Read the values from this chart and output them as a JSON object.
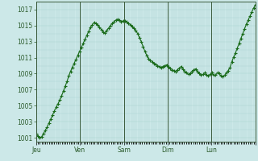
{
  "bg_color": "#cce8e8",
  "line_color": "#1a6b1a",
  "marker": "+",
  "marker_size": 2.5,
  "linewidth": 0.8,
  "ylim": [
    1000.5,
    1018.0
  ],
  "yticks": [
    1001,
    1003,
    1005,
    1007,
    1009,
    1011,
    1013,
    1015,
    1017
  ],
  "day_labels": [
    "Jeu",
    "Ven",
    "Sam",
    "Dim",
    "Lun",
    ""
  ],
  "day_positions_norm": [
    0.0,
    0.2,
    0.4,
    0.6,
    0.8,
    1.0
  ],
  "grid_color": "#a8d0cc",
  "major_vgrid_color": "#3a5a3a",
  "tick_color": "#2a5a2a",
  "values": [
    1001.5,
    1001.2,
    1001.0,
    1001.1,
    1001.5,
    1001.9,
    1002.3,
    1002.8,
    1003.3,
    1003.8,
    1004.3,
    1004.8,
    1005.2,
    1005.7,
    1006.2,
    1006.8,
    1007.4,
    1008.0,
    1008.7,
    1009.3,
    1009.8,
    1010.3,
    1010.8,
    1011.3,
    1011.8,
    1012.3,
    1012.8,
    1013.3,
    1013.8,
    1014.3,
    1014.8,
    1015.1,
    1015.4,
    1015.3,
    1015.1,
    1014.8,
    1014.5,
    1014.2,
    1014.1,
    1014.4,
    1014.7,
    1015.0,
    1015.3,
    1015.5,
    1015.7,
    1015.8,
    1015.7,
    1015.5,
    1015.6,
    1015.6,
    1015.5,
    1015.3,
    1015.1,
    1014.9,
    1014.7,
    1014.4,
    1014.0,
    1013.5,
    1013.0,
    1012.4,
    1011.8,
    1011.3,
    1010.9,
    1010.7,
    1010.5,
    1010.3,
    1010.2,
    1010.0,
    1009.9,
    1009.8,
    1009.9,
    1010.0,
    1010.1,
    1009.9,
    1009.7,
    1009.5,
    1009.4,
    1009.3,
    1009.5,
    1009.7,
    1009.9,
    1009.6,
    1009.3,
    1009.1,
    1008.9,
    1009.0,
    1009.3,
    1009.5,
    1009.6,
    1009.3,
    1009.0,
    1008.8,
    1008.9,
    1009.1,
    1008.8,
    1008.7,
    1008.9,
    1009.1,
    1008.8,
    1008.8,
    1009.1,
    1009.0,
    1008.7,
    1008.6,
    1008.8,
    1009.1,
    1009.4,
    1009.8,
    1010.5,
    1011.1,
    1011.6,
    1012.2,
    1012.8,
    1013.4,
    1014.0,
    1014.6,
    1015.2,
    1015.7,
    1016.2,
    1016.7,
    1017.2,
    1017.6
  ]
}
